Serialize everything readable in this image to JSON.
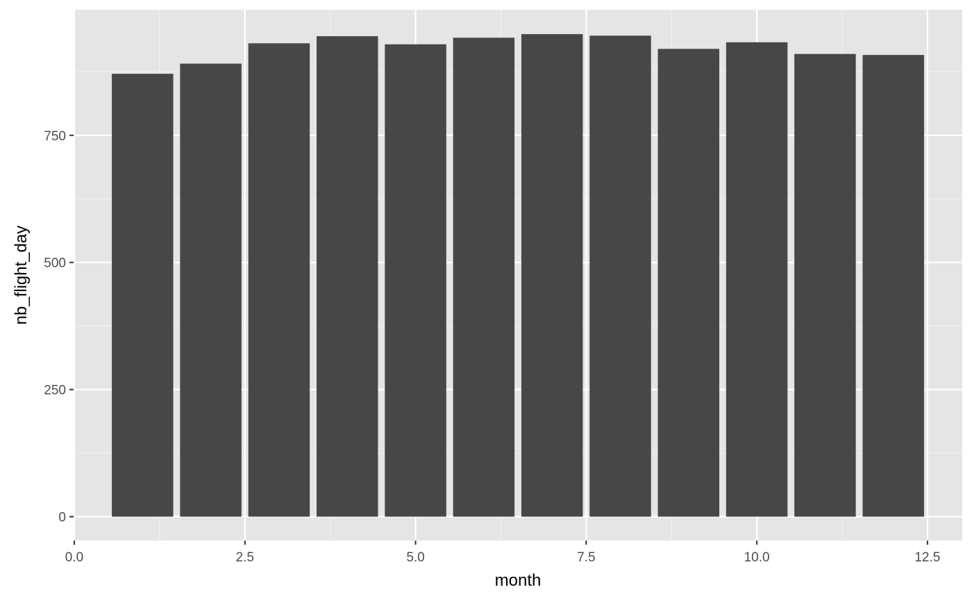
{
  "chart_data": {
    "type": "bar",
    "title": "",
    "xlabel": "month",
    "ylabel": "nb_flight_day",
    "x": [
      1,
      2,
      3,
      4,
      5,
      6,
      7,
      8,
      9,
      10,
      11,
      12
    ],
    "values": [
      871,
      891,
      931,
      945,
      929,
      942,
      949,
      946,
      920,
      933,
      910,
      908
    ],
    "bar_width": 0.9,
    "xlim": [
      -0.01,
      13.01
    ],
    "ylim": [
      -47,
      997
    ],
    "x_ticks": [
      {
        "value": 0.0,
        "label": "0.0"
      },
      {
        "value": 2.5,
        "label": "2.5"
      },
      {
        "value": 5.0,
        "label": "5.0"
      },
      {
        "value": 7.5,
        "label": "7.5"
      },
      {
        "value": 10.0,
        "label": "10.0"
      },
      {
        "value": 12.5,
        "label": "12.5"
      }
    ],
    "x_minor_ticks": [
      1.25,
      3.75,
      6.25,
      8.75,
      11.25
    ],
    "y_ticks": [
      {
        "value": 0,
        "label": "0"
      },
      {
        "value": 250,
        "label": "250"
      },
      {
        "value": 500,
        "label": "500"
      },
      {
        "value": 750,
        "label": "750"
      }
    ],
    "y_minor_ticks": [
      125,
      375,
      625,
      875
    ],
    "grid": true,
    "legend": "none",
    "colors": {
      "panel_background": "#e5e5e5",
      "grid_major": "#ffffff",
      "grid_minor": "#f2f2f2",
      "bar_fill": "#474747",
      "tick_text": "#4d4d4d",
      "tick_mark": "#333333",
      "axis_title": "#000000"
    }
  }
}
